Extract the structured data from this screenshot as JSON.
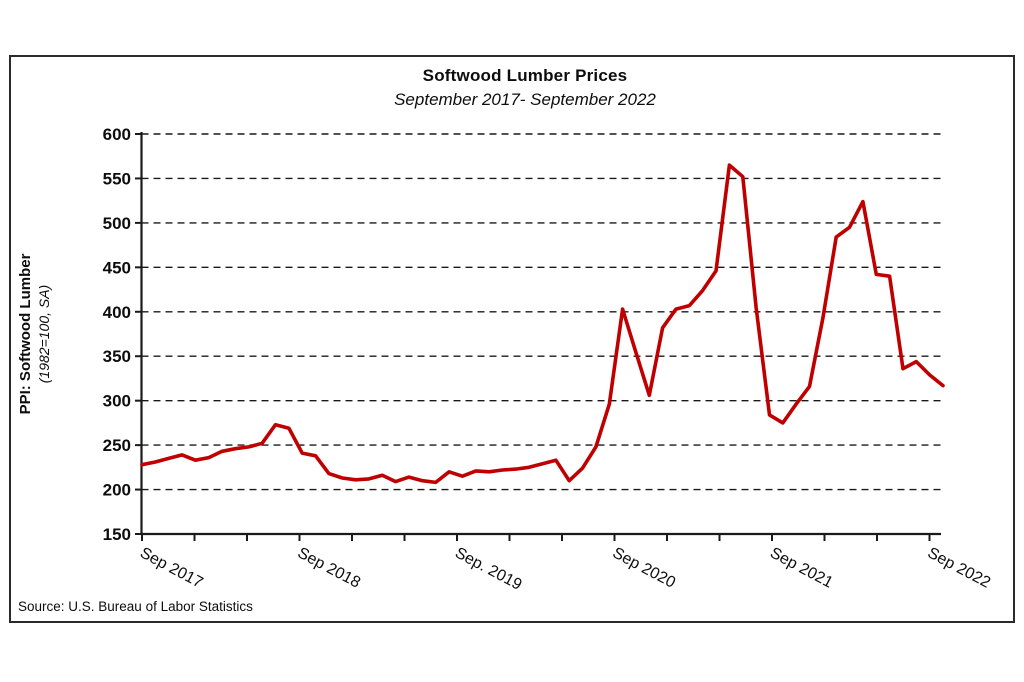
{
  "chart": {
    "title": "Softwood Lumber Prices",
    "subtitle": "September 2017- September 2022",
    "y_axis_title": "PPI: Softwood Lumber",
    "y_axis_subtitle": "(1982=100, SA)",
    "source": "Source: U.S. Bureau of Labor Statistics"
  },
  "chart_data": {
    "type": "line",
    "title": "Softwood Lumber Prices",
    "subtitle": "September 2017- September 2022",
    "xlabel": "",
    "ylabel": "PPI: Softwood Lumber (1982=100, SA)",
    "ylim": [
      150,
      600
    ],
    "y_ticks": [
      150,
      200,
      250,
      300,
      350,
      400,
      450,
      500,
      550,
      600
    ],
    "x_tick_labels": [
      "Sep 2017",
      "Sep 2018",
      "Sep. 2019",
      "Sep 2020",
      "Sep 2021",
      "Sep 2022"
    ],
    "x_minor_ticks_every_months": 4,
    "grid": "horizontal-dashed",
    "legend": "none",
    "line_color": "#C00000",
    "axis_color": "#1a1a1a",
    "x": [
      "Sep 2017",
      "Oct 2017",
      "Nov 2017",
      "Dec 2017",
      "Jan 2018",
      "Feb 2018",
      "Mar 2018",
      "Apr 2018",
      "May 2018",
      "Jun 2018",
      "Jul 2018",
      "Aug 2018",
      "Sep 2018",
      "Oct 2018",
      "Nov 2018",
      "Dec 2018",
      "Jan 2019",
      "Feb 2019",
      "Mar 2019",
      "Apr 2019",
      "May 2019",
      "Jun 2019",
      "Jul 2019",
      "Aug 2019",
      "Sep 2019",
      "Oct 2019",
      "Nov 2019",
      "Dec 2019",
      "Jan 2020",
      "Feb 2020",
      "Mar 2020",
      "Apr 2020",
      "May 2020",
      "Jun 2020",
      "Jul 2020",
      "Aug 2020",
      "Sep 2020",
      "Oct 2020",
      "Nov 2020",
      "Dec 2020",
      "Jan 2021",
      "Feb 2021",
      "Mar 2021",
      "Apr 2021",
      "May 2021",
      "Jun 2021",
      "Jul 2021",
      "Aug 2021",
      "Sep 2021",
      "Oct 2021",
      "Nov 2021",
      "Dec 2021",
      "Jan 2022",
      "Feb 2022",
      "Mar 2022",
      "Apr 2022",
      "May 2022",
      "Jun 2022",
      "Jul 2022",
      "Aug 2022",
      "Sep 2022"
    ],
    "values": [
      228,
      231,
      235,
      239,
      233,
      236,
      243,
      246,
      248,
      252,
      273,
      269,
      241,
      238,
      218,
      213,
      211,
      212,
      216,
      209,
      214,
      210,
      208,
      220,
      215,
      221,
      220,
      222,
      223,
      225,
      229,
      233,
      210,
      224,
      248,
      296,
      403,
      354,
      306,
      382,
      403,
      407,
      424,
      446,
      565,
      552,
      405,
      284,
      275,
      296,
      316,
      393,
      484,
      495,
      524,
      442,
      440,
      336,
      344,
      329,
      317
    ]
  }
}
